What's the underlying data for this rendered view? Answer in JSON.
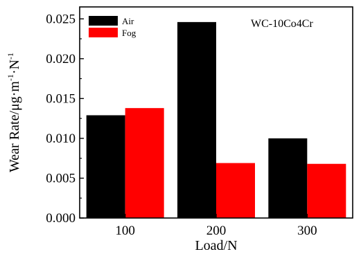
{
  "chart_data": {
    "type": "bar",
    "categories": [
      "100",
      "200",
      "300"
    ],
    "series": [
      {
        "name": "Air",
        "values": [
          0.0129,
          0.0246,
          0.01
        ],
        "color": "#000000"
      },
      {
        "name": "Fog",
        "values": [
          0.0138,
          0.0069,
          0.0068
        ],
        "color": "#ff0000"
      }
    ],
    "xlabel": "Load/N",
    "ylabel_parts": {
      "main": "Wear Rate/μg·m",
      "sup1": "-1",
      "mid": "·N",
      "sup2": "-1"
    },
    "yticks": [
      "0.000",
      "0.005",
      "0.010",
      "0.015",
      "0.020",
      "0.025"
    ],
    "ylim": [
      0,
      0.0265
    ],
    "annotation": "WC-10Co4Cr",
    "legend_position": "top-left",
    "grid": false
  }
}
